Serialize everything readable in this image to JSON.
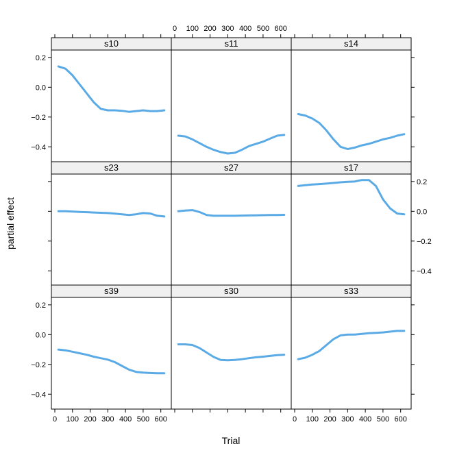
{
  "chart_data": {
    "type": "line",
    "xlabel": "Trial",
    "ylabel": "partial effect",
    "xlim": [
      0,
      640
    ],
    "ylim": [
      -0.5,
      0.25
    ],
    "x_ticks": [
      0,
      100,
      200,
      300,
      400,
      500,
      600
    ],
    "y_ticks": [
      0.2,
      0.0,
      -0.2,
      -0.4
    ],
    "x_tick_labels": [
      "0",
      "100",
      "200",
      "300",
      "400",
      "500",
      "600"
    ],
    "y_tick_labels": [
      "0.2",
      "0.0",
      "−0.2",
      "−0.4"
    ],
    "line_color": "#5aaae6",
    "strip_color": "#f0f0f0",
    "panels": [
      {
        "name": "s10",
        "row": 0,
        "col": 0,
        "x": [
          20,
          60,
          100,
          140,
          180,
          220,
          260,
          300,
          340,
          380,
          420,
          460,
          500,
          540,
          580,
          620
        ],
        "y": [
          0.14,
          0.125,
          0.08,
          0.02,
          -0.04,
          -0.1,
          -0.145,
          -0.155,
          -0.155,
          -0.158,
          -0.165,
          -0.16,
          -0.155,
          -0.16,
          -0.16,
          -0.155
        ]
      },
      {
        "name": "s11",
        "row": 0,
        "col": 1,
        "x": [
          20,
          60,
          100,
          140,
          180,
          220,
          260,
          300,
          340,
          380,
          420,
          460,
          500,
          540,
          580,
          620
        ],
        "y": [
          -0.325,
          -0.33,
          -0.35,
          -0.375,
          -0.4,
          -0.42,
          -0.435,
          -0.445,
          -0.44,
          -0.42,
          -0.395,
          -0.38,
          -0.365,
          -0.345,
          -0.325,
          -0.32
        ]
      },
      {
        "name": "s14",
        "row": 0,
        "col": 2,
        "x": [
          20,
          60,
          100,
          140,
          180,
          220,
          260,
          300,
          340,
          380,
          420,
          460,
          500,
          540,
          580,
          620
        ],
        "y": [
          -0.18,
          -0.19,
          -0.21,
          -0.24,
          -0.29,
          -0.35,
          -0.4,
          -0.415,
          -0.405,
          -0.39,
          -0.38,
          -0.365,
          -0.35,
          -0.34,
          -0.325,
          -0.315
        ]
      },
      {
        "name": "s23",
        "row": 1,
        "col": 0,
        "x": [
          20,
          60,
          100,
          140,
          180,
          220,
          260,
          300,
          340,
          380,
          420,
          460,
          500,
          540,
          580,
          620
        ],
        "y": [
          0.0,
          0.0,
          -0.002,
          -0.004,
          -0.006,
          -0.008,
          -0.01,
          -0.012,
          -0.016,
          -0.02,
          -0.025,
          -0.02,
          -0.012,
          -0.015,
          -0.03,
          -0.035
        ]
      },
      {
        "name": "s27",
        "row": 1,
        "col": 1,
        "x": [
          20,
          60,
          100,
          140,
          180,
          220,
          260,
          300,
          340,
          380,
          420,
          460,
          500,
          540,
          580,
          620
        ],
        "y": [
          0.0,
          0.005,
          0.008,
          -0.005,
          -0.025,
          -0.03,
          -0.03,
          -0.03,
          -0.03,
          -0.029,
          -0.028,
          -0.027,
          -0.026,
          -0.025,
          -0.025,
          -0.024
        ]
      },
      {
        "name": "s17",
        "row": 1,
        "col": 2,
        "x": [
          20,
          60,
          100,
          140,
          180,
          220,
          260,
          300,
          340,
          380,
          420,
          460,
          500,
          540,
          580,
          620
        ],
        "y": [
          0.17,
          0.175,
          0.18,
          0.183,
          0.186,
          0.19,
          0.195,
          0.198,
          0.2,
          0.21,
          0.21,
          0.17,
          0.08,
          0.02,
          -0.015,
          -0.02
        ]
      },
      {
        "name": "s39",
        "row": 2,
        "col": 0,
        "x": [
          20,
          60,
          100,
          140,
          180,
          220,
          260,
          300,
          340,
          380,
          420,
          460,
          500,
          540,
          580,
          620
        ],
        "y": [
          -0.1,
          -0.105,
          -0.115,
          -0.125,
          -0.135,
          -0.148,
          -0.158,
          -0.168,
          -0.185,
          -0.21,
          -0.235,
          -0.25,
          -0.255,
          -0.258,
          -0.26,
          -0.26
        ]
      },
      {
        "name": "s30",
        "row": 2,
        "col": 1,
        "x": [
          20,
          60,
          100,
          140,
          180,
          220,
          260,
          300,
          340,
          380,
          420,
          460,
          500,
          540,
          580,
          620
        ],
        "y": [
          -0.065,
          -0.065,
          -0.07,
          -0.09,
          -0.12,
          -0.15,
          -0.17,
          -0.172,
          -0.17,
          -0.165,
          -0.158,
          -0.152,
          -0.148,
          -0.143,
          -0.138,
          -0.135
        ]
      },
      {
        "name": "s33",
        "row": 2,
        "col": 2,
        "x": [
          20,
          60,
          100,
          140,
          180,
          220,
          260,
          300,
          340,
          380,
          420,
          460,
          500,
          540,
          580,
          620
        ],
        "y": [
          -0.165,
          -0.155,
          -0.135,
          -0.11,
          -0.07,
          -0.03,
          -0.005,
          0.0,
          0.0,
          0.005,
          0.01,
          0.012,
          0.015,
          0.02,
          0.025,
          0.025
        ]
      }
    ]
  }
}
